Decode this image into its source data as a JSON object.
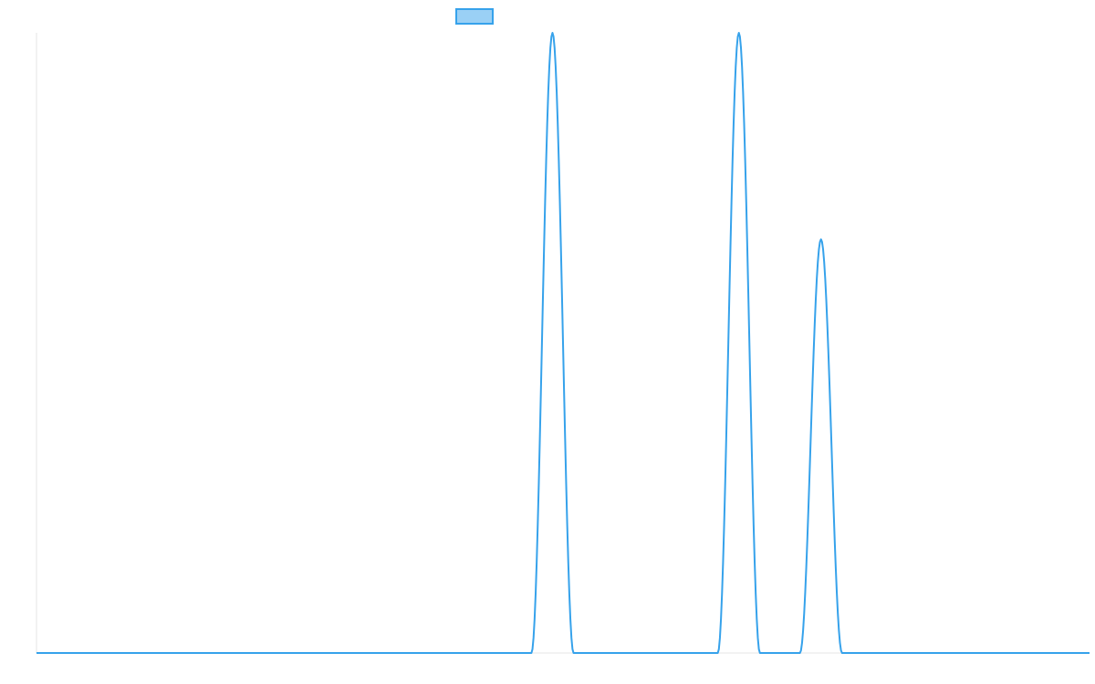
{
  "chart_data": {
    "type": "line",
    "title": "",
    "xlabel": "",
    "ylabel": "",
    "x_range": [
      0,
      1000
    ],
    "ylim": [
      0,
      100
    ],
    "grid": false,
    "legend": {
      "position": "top-center",
      "entries": [
        {
          "name": "",
          "swatch": "box"
        }
      ]
    },
    "colors": {
      "line": "#36a2eb",
      "legend_fill": "#9ad0f5",
      "legend_stroke": "#36a2eb",
      "axis": "#e6e6e6"
    },
    "series": [
      {
        "name": "",
        "peaks": [
          {
            "x": 490,
            "y": 100,
            "half_width": 20
          },
          {
            "x": 667,
            "y": 100,
            "half_width": 20
          },
          {
            "x": 745,
            "y": 66.7,
            "half_width": 20
          }
        ],
        "points": [
          [
            0,
            0
          ],
          [
            470,
            0
          ],
          [
            490,
            100
          ],
          [
            510,
            0
          ],
          [
            647,
            0
          ],
          [
            667,
            100
          ],
          [
            687,
            0
          ],
          [
            725,
            0
          ],
          [
            745,
            66.7
          ],
          [
            765,
            0
          ],
          [
            1000,
            0
          ]
        ]
      }
    ]
  }
}
